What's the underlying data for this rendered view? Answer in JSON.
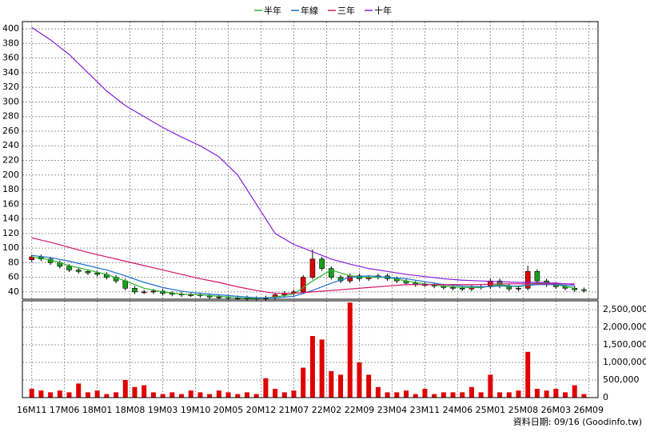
{
  "chart_data": {
    "type": "candlestick",
    "legend_position": "top",
    "series": [
      {
        "name": "半年",
        "color": "#2bb32b",
        "x": [
          0,
          4,
          8,
          12,
          16,
          20,
          24,
          28,
          32,
          36,
          40,
          44,
          48,
          52,
          56,
          60,
          64,
          68,
          72,
          76,
          80,
          84,
          88,
          92,
          96,
          100,
          104,
          108,
          112,
          116
        ],
        "values": [
          88,
          84,
          76,
          70,
          64,
          55,
          45,
          40,
          37,
          36,
          34,
          32,
          31,
          33,
          37,
          55,
          70,
          62,
          60,
          60,
          55,
          51,
          48,
          46,
          46,
          50,
          47,
          52,
          50,
          45
        ]
      },
      {
        "name": "年線",
        "color": "#1f6fd1",
        "x": [
          0,
          4,
          8,
          12,
          16,
          20,
          24,
          28,
          32,
          36,
          40,
          44,
          48,
          52,
          56,
          60,
          64,
          68,
          72,
          76,
          80,
          84,
          88,
          92,
          96,
          100,
          104,
          108,
          112,
          116
        ],
        "values": [
          90,
          87,
          82,
          76,
          70,
          62,
          53,
          46,
          41,
          38,
          36,
          34,
          32,
          32,
          34,
          42,
          52,
          60,
          62,
          60,
          58,
          54,
          50,
          48,
          47,
          48,
          48,
          50,
          50,
          48
        ]
      },
      {
        "name": "三年",
        "color": "#d6146b",
        "x": [
          0,
          4,
          8,
          12,
          16,
          20,
          24,
          28,
          32,
          36,
          40,
          44,
          48,
          52,
          56,
          60,
          64,
          68,
          72,
          76,
          80,
          84,
          88,
          92,
          96,
          100,
          104,
          108,
          112,
          116
        ],
        "values": [
          114,
          108,
          101,
          94,
          88,
          82,
          76,
          70,
          64,
          58,
          53,
          47,
          42,
          38,
          38,
          40,
          42,
          44,
          46,
          48,
          50,
          50,
          50,
          50,
          50,
          51,
          51,
          51,
          51,
          51
        ]
      },
      {
        "name": "十年",
        "color": "#8a1ee0",
        "x": [
          0,
          4,
          8,
          12,
          16,
          20,
          24,
          28,
          32,
          36,
          40,
          44,
          48,
          52,
          56,
          60,
          64,
          68,
          72,
          76,
          80,
          84,
          88,
          92,
          96,
          100,
          104,
          108,
          112,
          116
        ],
        "values": [
          402,
          385,
          365,
          340,
          315,
          295,
          280,
          265,
          252,
          240,
          225,
          200,
          160,
          120,
          105,
          95,
          85,
          78,
          72,
          68,
          64,
          61,
          58,
          56,
          55,
          54,
          53,
          53,
          52,
          50
        ]
      }
    ],
    "candles": {
      "up_color": "#e00000",
      "down_color": "#1aa01a",
      "x": [
        0,
        2,
        4,
        6,
        8,
        10,
        12,
        14,
        16,
        18,
        20,
        22,
        24,
        26,
        28,
        30,
        32,
        34,
        36,
        38,
        40,
        42,
        44,
        46,
        48,
        50,
        52,
        54,
        56,
        58,
        60,
        62,
        64,
        66,
        68,
        70,
        72,
        74,
        76,
        78,
        80,
        82,
        84,
        86,
        88,
        90,
        92,
        94,
        96,
        98,
        100,
        102,
        104,
        106,
        108,
        110,
        112,
        114,
        116,
        118
      ],
      "open": [
        84,
        88,
        85,
        80,
        75,
        70,
        68,
        66,
        64,
        60,
        55,
        45,
        40,
        40,
        41,
        38,
        37,
        36,
        36,
        35,
        33,
        33,
        32,
        32,
        31,
        31,
        32,
        36,
        38,
        40,
        60,
        85,
        72,
        60,
        55,
        62,
        58,
        60,
        62,
        58,
        55,
        52,
        50,
        50,
        48,
        46,
        45,
        44,
        46,
        47,
        55,
        48,
        44,
        45,
        68,
        55,
        50,
        47,
        45,
        43
      ],
      "high": [
        91,
        91,
        88,
        83,
        78,
        73,
        71,
        69,
        67,
        63,
        58,
        48,
        43,
        44,
        44,
        41,
        40,
        39,
        39,
        38,
        36,
        36,
        35,
        35,
        34,
        35,
        39,
        41,
        43,
        63,
        98,
        88,
        75,
        63,
        65,
        65,
        63,
        65,
        65,
        61,
        58,
        55,
        53,
        53,
        51,
        49,
        48,
        49,
        50,
        58,
        58,
        51,
        48,
        76,
        71,
        58,
        53,
        50,
        48,
        46
      ],
      "low": [
        81,
        82,
        77,
        72,
        67,
        65,
        63,
        61,
        57,
        52,
        42,
        37,
        37,
        37,
        35,
        34,
        33,
        33,
        32,
        30,
        30,
        29,
        29,
        28,
        28,
        28,
        29,
        33,
        35,
        37,
        57,
        69,
        57,
        52,
        52,
        55,
        55,
        57,
        55,
        52,
        49,
        47,
        47,
        45,
        43,
        42,
        41,
        41,
        43,
        44,
        45,
        41,
        41,
        42,
        52,
        47,
        44,
        42,
        40,
        39
      ],
      "close": [
        88,
        85,
        80,
        75,
        70,
        68,
        66,
        64,
        60,
        55,
        45,
        40,
        40,
        41,
        38,
        37,
        36,
        36,
        35,
        33,
        33,
        32,
        32,
        31,
        31,
        32,
        36,
        38,
        40,
        60,
        85,
        72,
        60,
        55,
        62,
        58,
        60,
        62,
        58,
        55,
        52,
        50,
        50,
        48,
        46,
        45,
        44,
        46,
        47,
        55,
        48,
        44,
        45,
        68,
        55,
        50,
        47,
        45,
        43,
        42
      ]
    },
    "volume": {
      "color": "#e00000",
      "x": [
        0,
        2,
        4,
        6,
        8,
        10,
        12,
        14,
        16,
        18,
        20,
        22,
        24,
        26,
        28,
        30,
        32,
        34,
        36,
        38,
        40,
        42,
        44,
        46,
        48,
        50,
        52,
        54,
        56,
        58,
        60,
        62,
        64,
        66,
        68,
        70,
        72,
        74,
        76,
        78,
        80,
        82,
        84,
        86,
        88,
        90,
        92,
        94,
        96,
        98,
        100,
        102,
        104,
        106,
        108,
        110,
        112,
        114,
        116,
        118
      ],
      "values": [
        250000,
        200000,
        150000,
        200000,
        150000,
        400000,
        150000,
        200000,
        100000,
        150000,
        500000,
        300000,
        350000,
        150000,
        100000,
        150000,
        100000,
        200000,
        150000,
        100000,
        200000,
        150000,
        100000,
        150000,
        100000,
        550000,
        250000,
        150000,
        200000,
        850000,
        1750000,
        1650000,
        750000,
        650000,
        2700000,
        1000000,
        650000,
        300000,
        150000,
        150000,
        200000,
        100000,
        250000,
        100000,
        150000,
        150000,
        150000,
        300000,
        150000,
        650000,
        150000,
        150000,
        200000,
        1300000,
        250000,
        200000,
        250000,
        150000,
        350000,
        100000
      ]
    },
    "xlim": [
      -2,
      121
    ],
    "xticks": [
      {
        "value": 0,
        "label": "16M11"
      },
      {
        "value": 7,
        "label": "17M06"
      },
      {
        "value": 14,
        "label": "18M01"
      },
      {
        "value": 21,
        "label": "18M08"
      },
      {
        "value": 28,
        "label": "19M03"
      },
      {
        "value": 35,
        "label": "19M10"
      },
      {
        "value": 42,
        "label": "20M05"
      },
      {
        "value": 49,
        "label": "20M12"
      },
      {
        "value": 56,
        "label": "21M07"
      },
      {
        "value": 63,
        "label": "22M02"
      },
      {
        "value": 70,
        "label": "22M09"
      },
      {
        "value": 77,
        "label": "23M04"
      },
      {
        "value": 84,
        "label": "23M11"
      },
      {
        "value": 91,
        "label": "24M06"
      },
      {
        "value": 98,
        "label": "25M01"
      },
      {
        "value": 105,
        "label": "25M08"
      },
      {
        "value": 112,
        "label": "26M03"
      },
      {
        "value": 119,
        "label": "26M09"
      }
    ],
    "ylim": [
      30,
      410
    ],
    "yticks": [
      40,
      60,
      80,
      100,
      120,
      140,
      160,
      180,
      200,
      220,
      240,
      260,
      280,
      300,
      320,
      340,
      360,
      380,
      400
    ],
    "volume_ylim": [
      0,
      2750000
    ],
    "volume_yticks": [
      {
        "value": 0,
        "label": "0"
      },
      {
        "value": 500000,
        "label": "500,000"
      },
      {
        "value": 1000000,
        "label": "1,000,000"
      },
      {
        "value": 1500000,
        "label": "1,500,000"
      },
      {
        "value": 2000000,
        "label": "2,000,000"
      },
      {
        "value": 2500000,
        "label": "2,500,000"
      }
    ],
    "grid": true,
    "source_note": "資料日期: 09/16  (Goodinfo.tw)"
  }
}
